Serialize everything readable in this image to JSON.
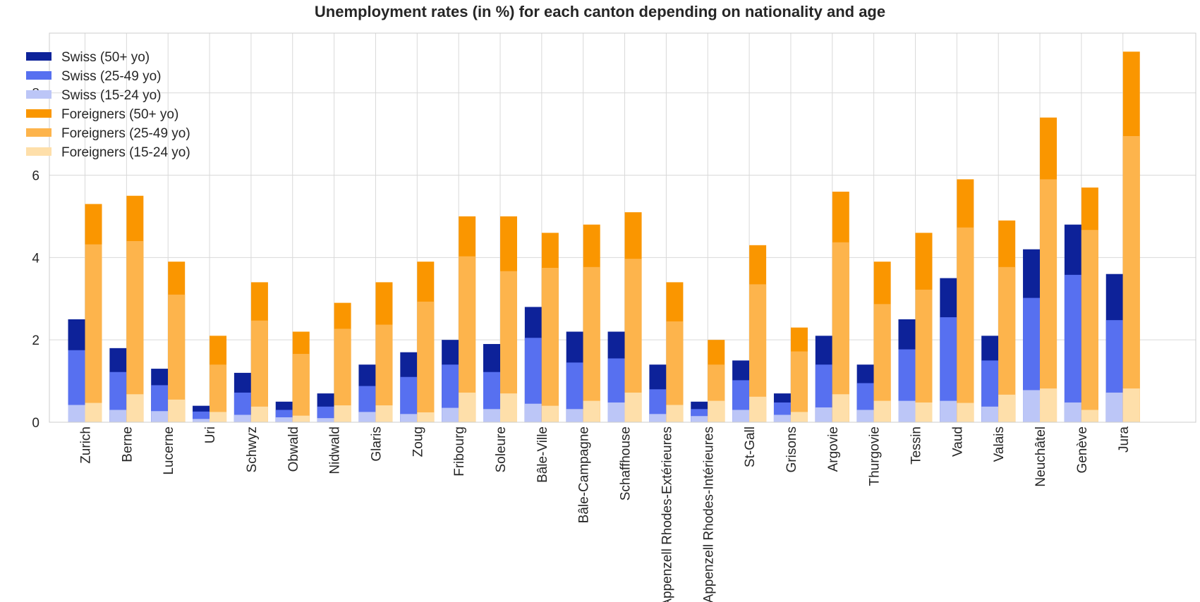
{
  "chart_data": {
    "type": "bar",
    "stacked": true,
    "grouped": true,
    "title": "Unemployment rates (in %) for each canton depending on nationality and age",
    "xlabel": "",
    "ylabel": "",
    "ylim": [
      0,
      9.45
    ],
    "yticks": [
      0,
      2,
      4,
      6,
      8
    ],
    "grid": true,
    "legend_position": "top-left",
    "categories": [
      "Zurich",
      "Berne",
      "Lucerne",
      "Uri",
      "Schwyz",
      "Obwald",
      "Nidwald",
      "Glaris",
      "Zoug",
      "Fribourg",
      "Soleure",
      "Bâle-Ville",
      "Bâle-Campagne",
      "Schaffhouse",
      "Appenzell Rhodes-Extérieures",
      "Appenzell Rhodes-Intérieures",
      "St-Gall",
      "Grisons",
      "Argovie",
      "Thurgovie",
      "Tessin",
      "Vaud",
      "Valais",
      "Neuchâtel",
      "Genève",
      "Jura"
    ],
    "series": [
      {
        "name": "Swiss (50+ yo)",
        "group": "Swiss",
        "color": "#0d2299",
        "values": [
          2.5,
          1.8,
          1.3,
          0.4,
          1.2,
          0.5,
          0.7,
          1.4,
          1.7,
          2.0,
          1.9,
          2.8,
          2.2,
          2.2,
          1.4,
          0.5,
          1.5,
          0.7,
          2.1,
          1.4,
          2.5,
          3.5,
          2.1,
          4.2,
          4.8,
          3.6
        ]
      },
      {
        "name": "Swiss (25-49 yo)",
        "group": "Swiss",
        "color": "#5770f0",
        "values": [
          1.75,
          1.22,
          0.9,
          0.26,
          0.72,
          0.3,
          0.38,
          0.88,
          1.1,
          1.4,
          1.22,
          2.05,
          1.45,
          1.55,
          0.8,
          0.32,
          1.02,
          0.48,
          1.4,
          0.95,
          1.77,
          2.55,
          1.5,
          3.02,
          3.58,
          2.48
        ]
      },
      {
        "name": "Swiss (15-24 yo)",
        "group": "Swiss",
        "color": "#bcc6f7",
        "values": [
          0.42,
          0.3,
          0.27,
          0.08,
          0.18,
          0.12,
          0.1,
          0.25,
          0.2,
          0.35,
          0.32,
          0.45,
          0.32,
          0.48,
          0.2,
          0.15,
          0.3,
          0.18,
          0.36,
          0.3,
          0.52,
          0.52,
          0.38,
          0.78,
          0.48,
          0.72
        ]
      },
      {
        "name": "Foreigners (50+ yo)",
        "group": "Foreigners",
        "color": "#fa9600",
        "values": [
          5.3,
          5.5,
          3.9,
          2.1,
          3.4,
          2.2,
          2.9,
          3.4,
          3.9,
          5.0,
          5.0,
          4.6,
          4.8,
          5.1,
          3.4,
          2.0,
          4.3,
          2.3,
          5.6,
          3.9,
          4.6,
          5.9,
          4.9,
          7.4,
          5.7,
          9.0
        ]
      },
      {
        "name": "Foreigners (25-49 yo)",
        "group": "Foreigners",
        "color": "#fdb44c",
        "values": [
          4.32,
          4.4,
          3.1,
          1.4,
          2.47,
          1.66,
          2.27,
          2.37,
          2.93,
          4.03,
          3.67,
          3.75,
          3.77,
          3.97,
          2.45,
          1.4,
          3.35,
          1.72,
          4.37,
          2.87,
          3.22,
          4.73,
          3.77,
          5.9,
          4.67,
          6.95
        ]
      },
      {
        "name": "Foreigners (15-24 yo)",
        "group": "Foreigners",
        "color": "#fedfaa",
        "values": [
          0.47,
          0.68,
          0.55,
          0.25,
          0.38,
          0.16,
          0.41,
          0.41,
          0.24,
          0.72,
          0.7,
          0.4,
          0.52,
          0.72,
          0.42,
          0.52,
          0.62,
          0.25,
          0.68,
          0.52,
          0.48,
          0.47,
          0.67,
          0.82,
          0.3,
          0.82
        ]
      }
    ]
  }
}
